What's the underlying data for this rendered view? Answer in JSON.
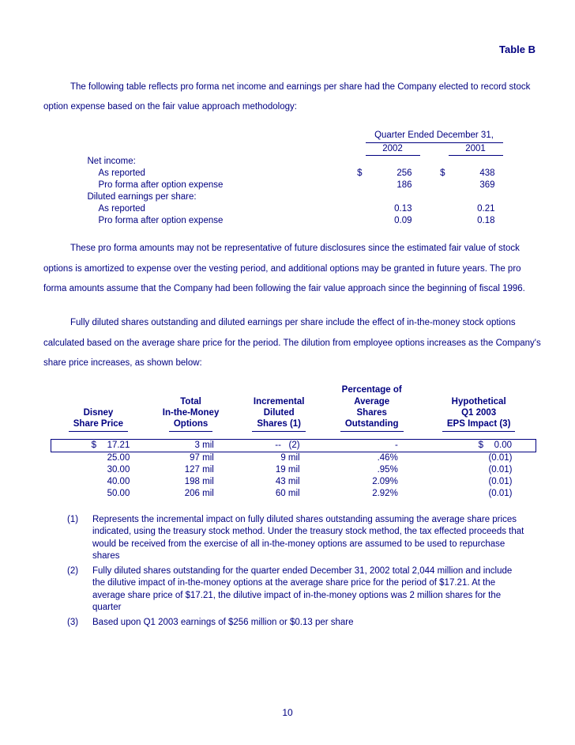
{
  "colors": {
    "text": "#000080",
    "background": "#ffffff",
    "rule": "#000080"
  },
  "typography": {
    "family": "Arial",
    "size_pt": 9,
    "line_height_body": 2.2
  },
  "title": "Table B",
  "para1": "The following table reflects pro forma net income and earnings per share had the Company elected to record stock option expense based on the fair value approach methodology:",
  "table1": {
    "header_span": "Quarter Ended December 31,",
    "years": [
      "2002",
      "2001"
    ],
    "rows": [
      {
        "label": "Net income:",
        "sub": false,
        "v": [
          "",
          ""
        ],
        "cur": [
          "",
          ""
        ]
      },
      {
        "label": "As reported",
        "sub": true,
        "v": [
          "256",
          "438"
        ],
        "cur": [
          "$",
          "$"
        ]
      },
      {
        "label": "Pro forma after option expense",
        "sub": true,
        "v": [
          "186",
          "369"
        ],
        "cur": [
          "",
          ""
        ]
      },
      {
        "label": "Diluted earnings per share:",
        "sub": false,
        "v": [
          "",
          ""
        ],
        "cur": [
          "",
          ""
        ]
      },
      {
        "label": "As reported",
        "sub": true,
        "v": [
          "0.13",
          "0.21"
        ],
        "cur": [
          "",
          ""
        ]
      },
      {
        "label": "Pro forma after option expense",
        "sub": true,
        "v": [
          "0.09",
          "0.18"
        ],
        "cur": [
          "",
          ""
        ]
      }
    ]
  },
  "para2": "These pro forma amounts may not be representative of future disclosures since the estimated fair value of stock options is amortized to expense over the vesting period, and additional options may be granted in future years.  The pro forma amounts assume that the Company had been following the fair value approach since the beginning of fiscal 1996.",
  "para3": "Fully diluted shares outstanding and diluted earnings per share include the effect of in-the-money stock options calculated based on the average share price for the period.  The dilution from employee options increases as the Company's share price increases, as shown below:",
  "table2": {
    "headers": [
      "Disney\nShare Price",
      "Total\nIn-the-Money\nOptions",
      "Incremental\nDiluted\nShares (1)",
      "Percentage of\nAverage\nShares\nOutstanding",
      "Hypothetical\nQ1 2003\nEPS Impact (3)"
    ],
    "rows": [
      {
        "hl": true,
        "price_cur": "$",
        "price": "17.21",
        "opts": "3 mil",
        "inc": "--   (2)",
        "pct": "-",
        "eps_cur": "$",
        "eps": "0.00"
      },
      {
        "hl": false,
        "price_cur": "",
        "price": "25.00",
        "opts": "97 mil",
        "inc": "9 mil",
        "pct": ".46%",
        "eps_cur": "",
        "eps": "(0.01)"
      },
      {
        "hl": false,
        "price_cur": "",
        "price": "30.00",
        "opts": "127 mil",
        "inc": "19 mil",
        "pct": ".95%",
        "eps_cur": "",
        "eps": "(0.01)"
      },
      {
        "hl": false,
        "price_cur": "",
        "price": "40.00",
        "opts": "198 mil",
        "inc": "43 mil",
        "pct": "2.09%",
        "eps_cur": "",
        "eps": "(0.01)"
      },
      {
        "hl": false,
        "price_cur": "",
        "price": "50.00",
        "opts": "206 mil",
        "inc": "60 mil",
        "pct": "2.92%",
        "eps_cur": "",
        "eps": "(0.01)"
      }
    ]
  },
  "footnotes": [
    {
      "n": "(1)",
      "t": "Represents the incremental impact on fully diluted shares outstanding assuming the average share prices indicated, using the treasury stock method.  Under the treasury stock method, the tax effected proceeds that would be received from the exercise of all in-the-money options are assumed to be used to repurchase shares"
    },
    {
      "n": "(2)",
      "t": "Fully diluted shares outstanding for the quarter ended December 31, 2002 total 2,044 million and include the dilutive impact of in-the-money options at the average share price for the period of $17.21.  At the average share price of $17.21, the dilutive impact of in-the-money options was 2 million shares for the quarter"
    },
    {
      "n": "(3)",
      "t": "Based upon Q1 2003 earnings of $256 million or $0.13 per share"
    }
  ],
  "page_number": "10"
}
